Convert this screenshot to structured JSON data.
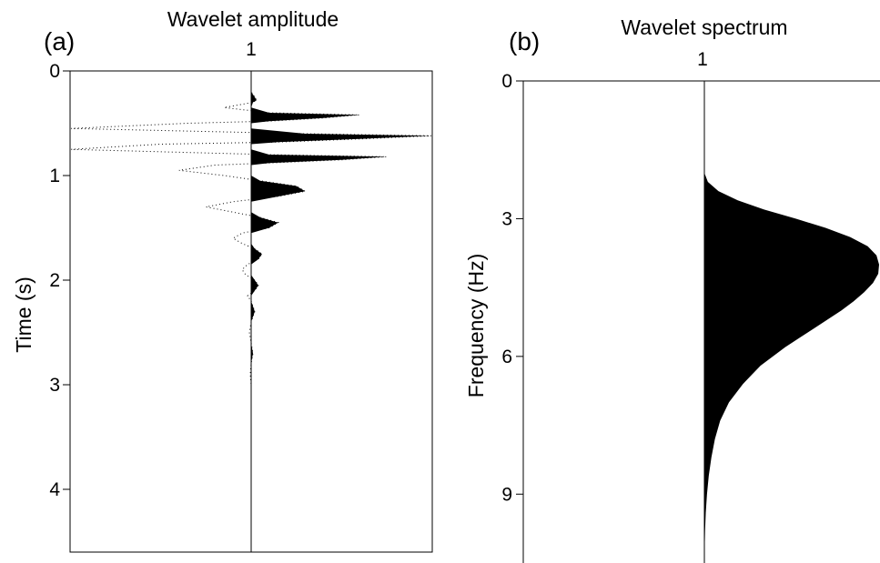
{
  "chart_data": [
    {
      "panel_label": "(a)",
      "type": "area",
      "title": "Wavelet amplitude",
      "xlabel": "",
      "ylabel": "Time (s)",
      "x_tick_label": "1",
      "ylim": [
        0,
        4.6
      ],
      "yticks": [
        "0",
        "1",
        "2",
        "3",
        "4"
      ],
      "grid": false,
      "axis_inverted": true,
      "series": [
        {
          "name": "",
          "description_of_values": "trace amplitude versus time; positive lobes filled black",
          "time": [
            0.0,
            0.1,
            0.2,
            0.25,
            0.28,
            0.3,
            0.35,
            0.4,
            0.42,
            0.45,
            0.48,
            0.5,
            0.55,
            0.6,
            0.62,
            0.65,
            0.68,
            0.7,
            0.75,
            0.8,
            0.82,
            0.85,
            0.88,
            0.9,
            0.95,
            1.0,
            1.05,
            1.1,
            1.15,
            1.2,
            1.25,
            1.3,
            1.35,
            1.4,
            1.45,
            1.5,
            1.55,
            1.6,
            1.65,
            1.7,
            1.75,
            1.8,
            1.85,
            1.9,
            1.95,
            2.0,
            2.05,
            2.1,
            2.15,
            2.2,
            2.3,
            2.4,
            2.5,
            2.6,
            2.7,
            2.8,
            2.9,
            3.0,
            3.1,
            3.5,
            4.0,
            4.6
          ],
          "amplitude": [
            0.0,
            0.0,
            0.0,
            0.02,
            0.03,
            0.01,
            -0.15,
            0.1,
            0.6,
            0.4,
            0.1,
            -0.35,
            -1.0,
            0.3,
            1.0,
            0.6,
            0.15,
            -0.5,
            -1.0,
            0.1,
            0.75,
            0.5,
            0.1,
            -0.2,
            -0.4,
            -0.15,
            0.05,
            0.25,
            0.3,
            0.15,
            -0.1,
            -0.25,
            -0.1,
            0.05,
            0.15,
            0.1,
            -0.05,
            -0.1,
            -0.05,
            0.02,
            0.06,
            0.04,
            -0.02,
            -0.05,
            -0.03,
            0.02,
            0.04,
            0.02,
            -0.02,
            0.0,
            0.02,
            0.0,
            -0.01,
            0.0,
            0.01,
            0.0,
            -0.005,
            0.0,
            0.0,
            0.0,
            0.0,
            0.0
          ]
        }
      ]
    },
    {
      "panel_label": "(b)",
      "type": "area",
      "title": "Wavelet spectrum",
      "xlabel": "",
      "ylabel": "Frequency (Hz)",
      "x_tick_label": "1",
      "ylim": [
        0,
        10.5
      ],
      "yticks": [
        "0",
        "3",
        "6",
        "9"
      ],
      "grid": false,
      "axis_inverted": true,
      "series": [
        {
          "name": "",
          "description_of_values": "spectral amplitude versus frequency; filled black",
          "frequency": [
            0.0,
            1.0,
            2.0,
            2.2,
            2.4,
            2.6,
            2.8,
            3.0,
            3.2,
            3.4,
            3.6,
            3.8,
            4.0,
            4.2,
            4.4,
            4.6,
            4.8,
            5.0,
            5.2,
            5.4,
            5.6,
            5.8,
            6.0,
            6.2,
            6.4,
            6.6,
            6.8,
            7.0,
            7.4,
            7.8,
            8.2,
            8.6,
            9.0,
            9.4,
            9.8,
            10.5
          ],
          "amplitude": [
            0.0,
            0.0,
            0.0,
            0.02,
            0.08,
            0.19,
            0.34,
            0.52,
            0.69,
            0.83,
            0.93,
            0.98,
            1.0,
            0.99,
            0.96,
            0.91,
            0.85,
            0.78,
            0.7,
            0.62,
            0.54,
            0.46,
            0.39,
            0.32,
            0.27,
            0.22,
            0.18,
            0.14,
            0.09,
            0.06,
            0.04,
            0.025,
            0.015,
            0.008,
            0.004,
            0.0
          ]
        }
      ]
    }
  ]
}
